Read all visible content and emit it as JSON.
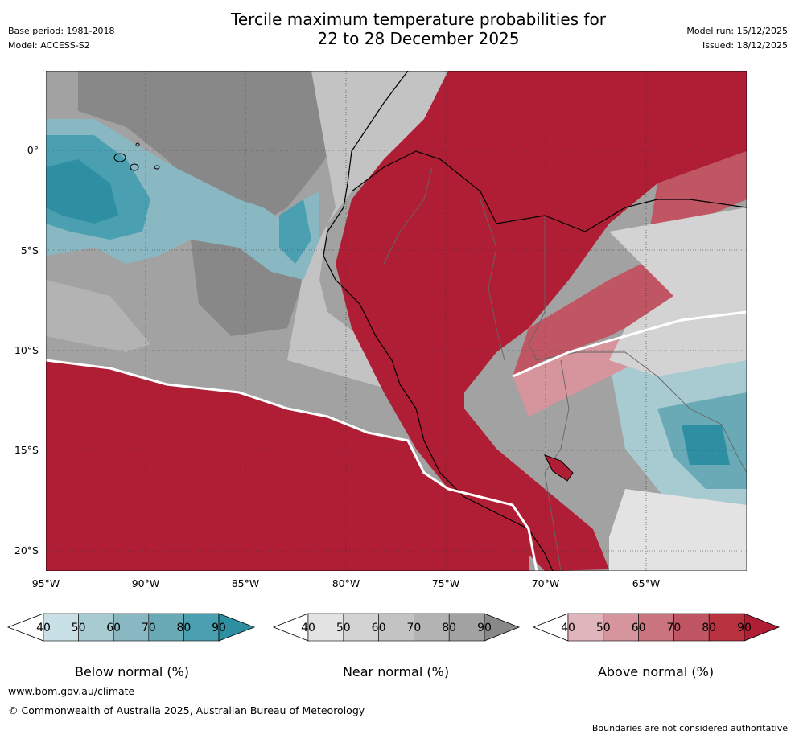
{
  "title_line1": "Tercile maximum temperature probabilities for",
  "title_line2": "22 to 28 December 2025",
  "meta": {
    "base_period": "Base period: 1981-2018",
    "model": "Model: ACCESS-S2",
    "model_run": "Model run: 15/12/2025",
    "issued": "Issued: 18/12/2025"
  },
  "axes": {
    "lat_labels": [
      "0°",
      "5°S",
      "10°S",
      "15°S",
      "20°S"
    ],
    "lon_labels": [
      "95°W",
      "90°W",
      "85°W",
      "80°W",
      "75°W",
      "70°W",
      "65°W"
    ]
  },
  "colorbars": [
    {
      "label": "Below normal (%)",
      "ticks": [
        "40",
        "50",
        "60",
        "70",
        "80",
        "90"
      ],
      "colors": [
        "#c9e1e6",
        "#a8cbd2",
        "#89b8c2",
        "#6aaab6",
        "#4aa0b0",
        "#2e8fa3"
      ]
    },
    {
      "label": "Near normal (%)",
      "ticks": [
        "40",
        "50",
        "60",
        "70",
        "80",
        "90"
      ],
      "colors": [
        "#e3e3e3",
        "#d3d3d3",
        "#c3c3c3",
        "#b3b3b3",
        "#a2a2a2",
        "#888888"
      ]
    },
    {
      "label": "Above normal (%)",
      "ticks": [
        "40",
        "50",
        "60",
        "70",
        "80",
        "90"
      ],
      "colors": [
        "#e0b5bb",
        "#d6949c",
        "#ca7480",
        "#c05663",
        "#b8323f",
        "#b01e35"
      ]
    }
  ],
  "footer": {
    "url": "www.bom.gov.au/climate",
    "copyright": "© Commonwealth of Australia 2025, Australian Bureau of Meteorology",
    "note": "Boundaries are not considered authoritative"
  }
}
